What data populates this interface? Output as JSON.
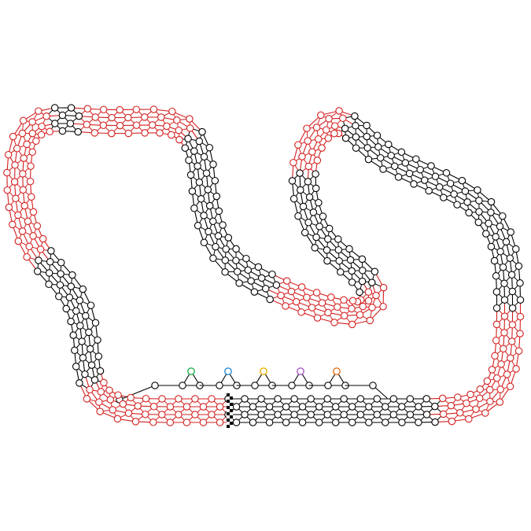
{
  "track": {
    "lanes": 4,
    "colors": {
      "edge": "#000000",
      "node_fill": "#ffffff",
      "node_stroke": "#000000",
      "corner": "#d42020",
      "finish_dark": "#000000",
      "finish_light": "#ffffff"
    },
    "corner_sections": [
      "top-left",
      "top-right-hairpin",
      "top-right-peak",
      "mid-right-hairpin",
      "bottom-left",
      "bottom-right"
    ]
  },
  "pit": {
    "boxes": [
      {
        "name": "green",
        "color": "#22b24c"
      },
      {
        "name": "blue",
        "color": "#2a8ad4"
      },
      {
        "name": "yellow",
        "color": "#e8b400"
      },
      {
        "name": "purple",
        "color": "#a659c6"
      },
      {
        "name": "orange",
        "color": "#e8731c"
      }
    ]
  }
}
